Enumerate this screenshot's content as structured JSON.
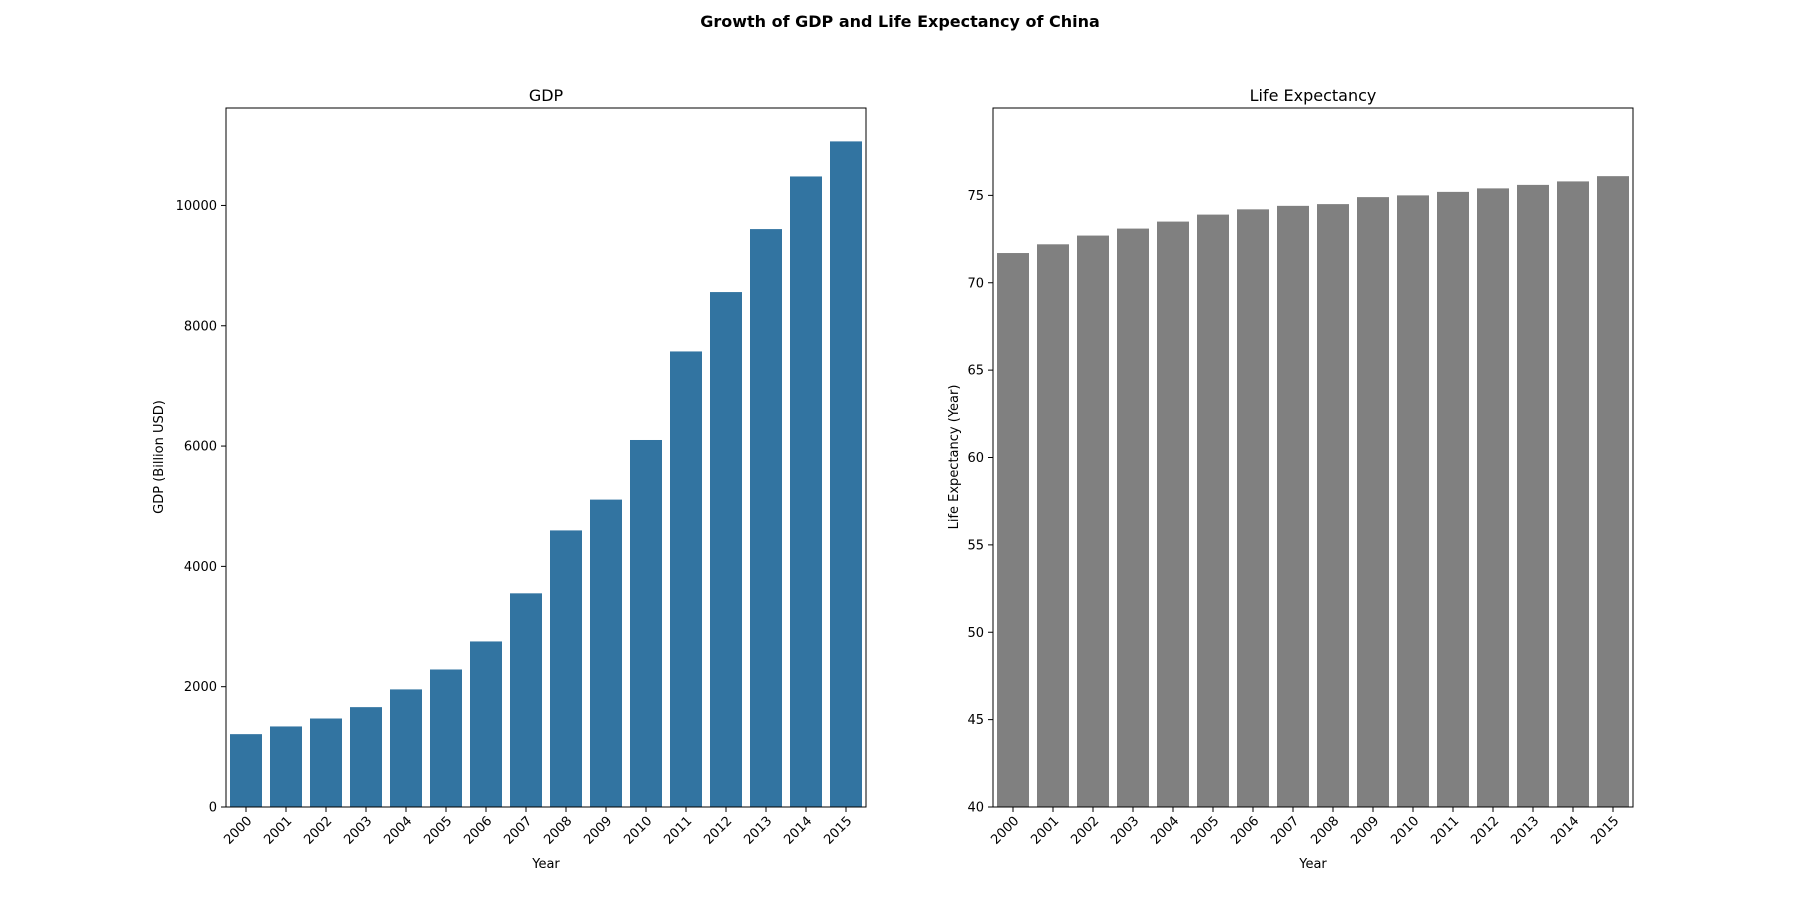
{
  "title": "Growth of GDP and Life Expectancy of China",
  "chart_data": [
    {
      "type": "bar",
      "title": "GDP",
      "xlabel": "Year",
      "ylabel": "GDP (Billion USD)",
      "categories": [
        "2000",
        "2001",
        "2002",
        "2003",
        "2004",
        "2005",
        "2006",
        "2007",
        "2008",
        "2009",
        "2010",
        "2011",
        "2012",
        "2013",
        "2014",
        "2015"
      ],
      "values": [
        1211,
        1339,
        1471,
        1660,
        1955,
        2286,
        2752,
        3552,
        4598,
        5110,
        6101,
        7573,
        8560,
        9607,
        10482,
        11065
      ],
      "ylim": [
        0,
        11620
      ],
      "yticks": [
        0,
        2000,
        4000,
        6000,
        8000,
        10000
      ],
      "color": "#3274a1"
    },
    {
      "type": "bar",
      "title": "Life Expectancy",
      "xlabel": "Year",
      "ylabel": "Life Expectancy (Year)",
      "categories": [
        "2000",
        "2001",
        "2002",
        "2003",
        "2004",
        "2005",
        "2006",
        "2007",
        "2008",
        "2009",
        "2010",
        "2011",
        "2012",
        "2013",
        "2014",
        "2015"
      ],
      "values": [
        71.7,
        72.2,
        72.7,
        73.1,
        73.5,
        73.9,
        74.2,
        74.4,
        74.5,
        74.9,
        75.0,
        75.2,
        75.4,
        75.6,
        75.8,
        76.1
      ],
      "ylim": [
        40,
        80
      ],
      "yticks": [
        40,
        45,
        50,
        55,
        60,
        65,
        70,
        75
      ],
      "color": "#808080"
    }
  ]
}
